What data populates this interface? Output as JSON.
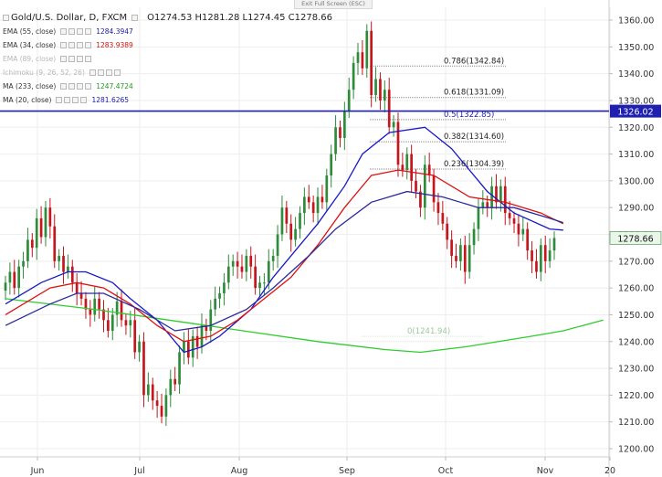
{
  "toolbar": {
    "exit_fullscreen": "Exit Full Screen (ESC)"
  },
  "legend": {
    "symbol": "Gold/U.S. Dollar, D, FXCM",
    "ohlc": "O1274.53  H1281.28  L1274.45  C1278.66",
    "indicators": [
      {
        "name": "EMA (55, close)",
        "value": "1284.3947",
        "color": "#1a1aa8"
      },
      {
        "name": "EMA (34, close)",
        "value": "1283.9389",
        "color": "#d01010"
      },
      {
        "name": "EMA (89, close)",
        "value": "",
        "color": "#b7b7b7"
      },
      {
        "name": "Ichimoku (9, 26, 52, 26)",
        "value": "",
        "color": "#b7b7b7"
      },
      {
        "name": "MA (233, close)",
        "value": "1247.4724",
        "color": "#1f9a1f"
      },
      {
        "name": "MA (20, close)",
        "value": "1281.6265",
        "color": "#1a1aa8"
      }
    ]
  },
  "chart_data": {
    "type": "candlestick",
    "title": "Gold/U.S. Dollar, D, FXCM",
    "y_range": [
      1200,
      1365
    ],
    "y_ticks": [
      1200,
      1210,
      1220,
      1230,
      1240,
      1250,
      1260,
      1270,
      1280,
      1290,
      1300,
      1310,
      1320,
      1330,
      1340,
      1350,
      1360
    ],
    "x_labels": [
      "Jun",
      "Jul",
      "Aug",
      "Sep",
      "Oct",
      "Nov",
      "20"
    ],
    "last_price": "1278.66",
    "horizontal_line": {
      "value": 1326.02,
      "label": "1326.02",
      "color": "#1f1fb0"
    },
    "fibonacci": [
      {
        "ratio": "0.786",
        "value": 1342.84,
        "label": "0.786(1342.84)"
      },
      {
        "ratio": "0.618",
        "value": 1331.09,
        "label": "0.618(1331.09)"
      },
      {
        "ratio": "0.5",
        "value": 1322.85,
        "label": "0.5(1322.85)"
      },
      {
        "ratio": "0.382",
        "value": 1314.6,
        "label": "0.382(1314.60)"
      },
      {
        "ratio": "0.236",
        "value": 1304.39,
        "label": "0.236(1304.39)"
      },
      {
        "ratio": "0",
        "value": 1241.94,
        "label": "0(1241.94)"
      }
    ],
    "closes": [
      1262,
      1266,
      1260,
      1268,
      1270,
      1278,
      1275,
      1286,
      1279,
      1290,
      1283,
      1270,
      1272,
      1266,
      1268,
      1262,
      1258,
      1256,
      1252,
      1250,
      1256,
      1252,
      1248,
      1244,
      1250,
      1255,
      1248,
      1246,
      1248,
      1236,
      1240,
      1220,
      1224,
      1218,
      1216,
      1212,
      1220,
      1226,
      1224,
      1236,
      1240,
      1234,
      1242,
      1238,
      1246,
      1244,
      1252,
      1256,
      1258,
      1262,
      1268,
      1270,
      1268,
      1266,
      1272,
      1268,
      1260,
      1262,
      1262,
      1270,
      1272,
      1280,
      1290,
      1284,
      1278,
      1282,
      1288,
      1294,
      1292,
      1288,
      1294,
      1292,
      1302,
      1310,
      1320,
      1316,
      1326,
      1334,
      1344,
      1348,
      1342,
      1356,
      1332,
      1338,
      1330,
      1334,
      1320,
      1322,
      1306,
      1304,
      1310,
      1300,
      1296,
      1290,
      1306,
      1302,
      1292,
      1288,
      1284,
      1278,
      1272,
      1270,
      1276,
      1266,
      1276,
      1282,
      1290,
      1292,
      1290,
      1298,
      1292,
      1298,
      1288,
      1286,
      1284,
      1280,
      1282,
      1274,
      1270,
      1266,
      1276,
      1270,
      1274,
      1278.66
    ],
    "series": [
      {
        "name": "MA (233, close)",
        "color": "#2fcc2f",
        "points": [
          [
            0,
            1256
          ],
          [
            20,
            1252
          ],
          [
            45,
            1246
          ],
          [
            70,
            1240
          ],
          [
            85,
            1237
          ],
          [
            93,
            1236
          ],
          [
            103,
            1238
          ],
          [
            118,
            1242
          ],
          [
            125,
            1244
          ],
          [
            134,
            1248
          ]
        ]
      },
      {
        "name": "MA (20, close)",
        "color": "#1818c8",
        "points": [
          [
            0,
            1254
          ],
          [
            8,
            1262
          ],
          [
            14,
            1266
          ],
          [
            18,
            1266
          ],
          [
            24,
            1262
          ],
          [
            28,
            1256
          ],
          [
            34,
            1248
          ],
          [
            40,
            1236
          ],
          [
            44,
            1238
          ],
          [
            48,
            1242
          ],
          [
            55,
            1252
          ],
          [
            60,
            1264
          ],
          [
            66,
            1276
          ],
          [
            70,
            1284
          ],
          [
            76,
            1298
          ],
          [
            80,
            1310
          ],
          [
            86,
            1318
          ],
          [
            94,
            1320
          ],
          [
            100,
            1312
          ],
          [
            108,
            1296
          ],
          [
            114,
            1288
          ],
          [
            122,
            1282
          ],
          [
            125,
            1281.6
          ]
        ]
      },
      {
        "name": "EMA (34, close)",
        "color": "#dd1111",
        "points": [
          [
            0,
            1250
          ],
          [
            10,
            1260
          ],
          [
            16,
            1262
          ],
          [
            22,
            1260
          ],
          [
            28,
            1254
          ],
          [
            34,
            1246
          ],
          [
            40,
            1240
          ],
          [
            46,
            1242
          ],
          [
            52,
            1248
          ],
          [
            58,
            1256
          ],
          [
            64,
            1264
          ],
          [
            70,
            1276
          ],
          [
            76,
            1290
          ],
          [
            82,
            1302
          ],
          [
            88,
            1304
          ],
          [
            96,
            1302
          ],
          [
            104,
            1294
          ],
          [
            112,
            1292
          ],
          [
            120,
            1288
          ],
          [
            125,
            1284
          ]
        ]
      },
      {
        "name": "EMA (55, close)",
        "color": "#2a2a9a",
        "points": [
          [
            0,
            1246
          ],
          [
            10,
            1254
          ],
          [
            16,
            1258
          ],
          [
            22,
            1258
          ],
          [
            30,
            1252
          ],
          [
            38,
            1244
          ],
          [
            46,
            1246
          ],
          [
            54,
            1252
          ],
          [
            60,
            1260
          ],
          [
            68,
            1272
          ],
          [
            74,
            1282
          ],
          [
            82,
            1292
          ],
          [
            90,
            1296
          ],
          [
            98,
            1294
          ],
          [
            106,
            1290
          ],
          [
            114,
            1290
          ],
          [
            122,
            1286
          ],
          [
            125,
            1284.4
          ]
        ]
      }
    ]
  }
}
